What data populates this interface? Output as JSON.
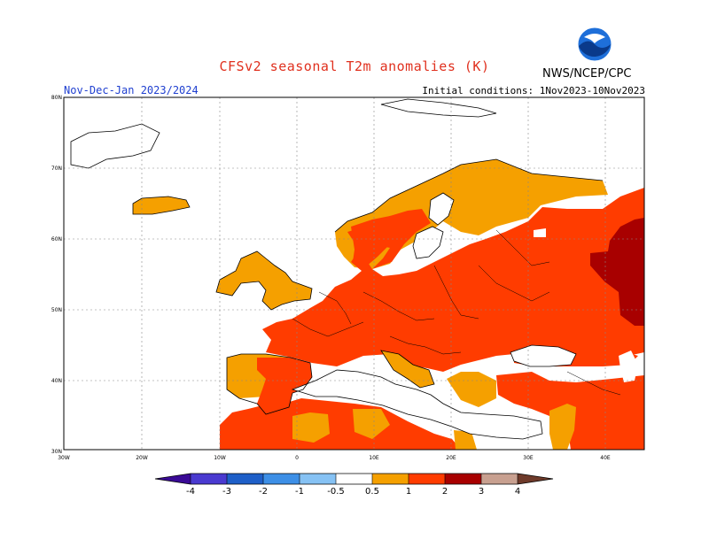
{
  "header": {
    "title": "CFSv2 seasonal T2m anomalies (K)",
    "period": "Nov-Dec-Jan 2023/2024",
    "initial_conditions": "Initial conditions: 1Nov2023-10Nov2023",
    "agency": "NWS/NCEP/CPC"
  },
  "axes": {
    "lat_labels": [
      "80N",
      "70N",
      "60N",
      "50N",
      "40N",
      "30N"
    ],
    "lon_labels": [
      "30W",
      "20W",
      "10W",
      "0",
      "10E",
      "20E",
      "30E",
      "40E"
    ],
    "lat_range": [
      30,
      80
    ],
    "lon_range": [
      -30,
      45
    ],
    "grid": true
  },
  "colorbar": {
    "labels": [
      "-4",
      "-3",
      "-2",
      "-1",
      "-0.5",
      "0.5",
      "1",
      "2",
      "3",
      "4"
    ],
    "bins": [
      {
        "from": -5,
        "to": -4,
        "color": "#3a0a96"
      },
      {
        "from": -4,
        "to": -3,
        "color": "#4a3ad0"
      },
      {
        "from": -3,
        "to": -2,
        "color": "#1e5fc8"
      },
      {
        "from": -2,
        "to": -1,
        "color": "#3d8fe6"
      },
      {
        "from": -1,
        "to": -0.5,
        "color": "#86c2f4"
      },
      {
        "from": -0.5,
        "to": 0.5,
        "color": "#ffffff"
      },
      {
        "from": 0.5,
        "to": 1,
        "color": "#f5a000"
      },
      {
        "from": 1,
        "to": 2,
        "color": "#ff3c00"
      },
      {
        "from": 2,
        "to": 3,
        "color": "#a80000"
      },
      {
        "from": 3,
        "to": 4,
        "color": "#c8a090"
      },
      {
        "from": 4,
        "to": 5,
        "color": "#6e3a2a"
      }
    ]
  },
  "colors": {
    "title": "#e0301e",
    "period": "#2040d0",
    "weak_warm": "#f5a000",
    "moderate_warm": "#ff3c00",
    "strong_warm": "#a80000"
  },
  "map": {
    "projection": "cylindrical equidistant",
    "anomaly_regions": [
      {
        "name": "Iceland",
        "category": "0.5 to 1"
      },
      {
        "name": "Scandinavia",
        "category": "0.5 to 1"
      },
      {
        "name": "British Isles",
        "category": "0.5 to 1"
      },
      {
        "name": "Iberia",
        "category": "0.5 to 1"
      },
      {
        "name": "Western and Central Europe",
        "category": "1 to 2"
      },
      {
        "name": "Eastern Europe",
        "category": "1 to 2"
      },
      {
        "name": "Western Russia",
        "category": "2 to 3"
      },
      {
        "name": "North Africa",
        "category": "1 to 2"
      },
      {
        "name": "Turkey",
        "category": "1 to 2"
      }
    ]
  }
}
